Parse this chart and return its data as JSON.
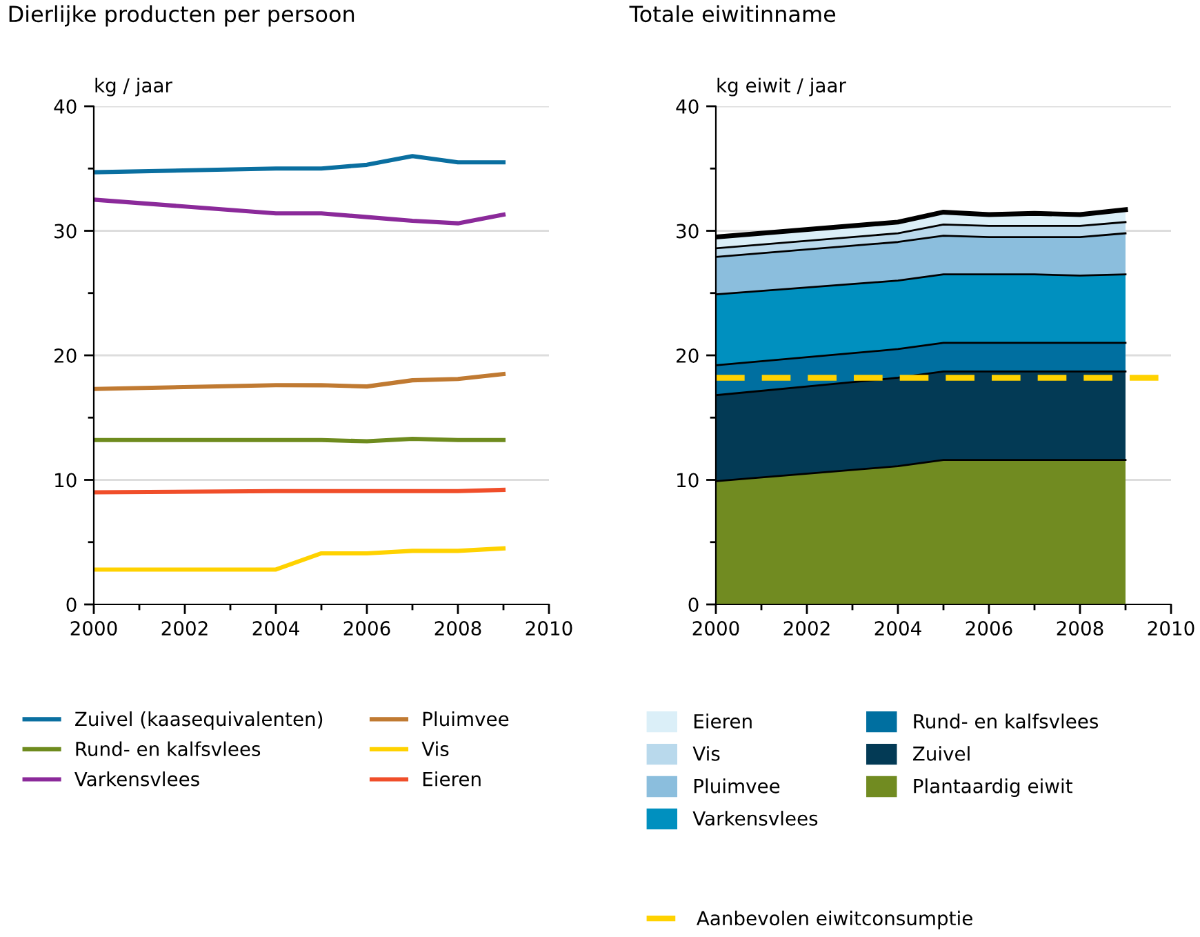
{
  "chart_data": [
    {
      "type": "line",
      "title": "Dierlijke producten per persoon",
      "ylabel": "kg / jaar",
      "x": [
        2000,
        2004,
        2005,
        2006,
        2007,
        2008,
        2009
      ],
      "series": [
        {
          "name": "Zuivel (kaasequivalenten)",
          "color": "#0a6fa0",
          "values": [
            34.7,
            35.0,
            35.0,
            35.3,
            36.0,
            35.5,
            35.5
          ]
        },
        {
          "name": "Rund- en kalfsvlees",
          "color": "#6e8b1e",
          "values": [
            13.2,
            13.2,
            13.2,
            13.1,
            13.3,
            13.2,
            13.2
          ]
        },
        {
          "name": "Varkensvlees",
          "color": "#8b2a9a",
          "values": [
            32.5,
            31.4,
            31.4,
            31.1,
            30.8,
            30.6,
            31.3
          ]
        },
        {
          "name": "Pluimvee",
          "color": "#c07a32",
          "values": [
            17.3,
            17.6,
            17.6,
            17.5,
            18.0,
            18.1,
            18.5
          ]
        },
        {
          "name": "Vis",
          "color": "#ffd200",
          "values": [
            2.8,
            2.8,
            4.1,
            4.1,
            4.3,
            4.3,
            4.5
          ]
        },
        {
          "name": "Eieren",
          "color": "#f04e2a",
          "values": [
            9.0,
            9.1,
            9.1,
            9.1,
            9.1,
            9.1,
            9.2
          ]
        }
      ],
      "xlim": [
        2000,
        2010
      ],
      "xticks": [
        2000,
        {
          "value": 2001,
          "label": null
        },
        2002,
        {
          "value": 2003,
          "label": null
        },
        2004,
        {
          "value": 2005,
          "label": null
        },
        2006,
        {
          "value": 2007,
          "label": null
        },
        2008,
        {
          "value": 2009,
          "label": null
        },
        2010
      ],
      "ylim": [
        0,
        40
      ],
      "yticks": [
        0,
        {
          "value": 5,
          "label": null
        },
        10,
        {
          "value": 15,
          "label": null
        },
        20,
        {
          "value": 25,
          "label": null
        },
        30,
        {
          "value": 35,
          "label": null
        },
        40
      ],
      "grid": "y",
      "legend": "bottom",
      "marker": "none",
      "line_style": "solid"
    },
    {
      "type": "area",
      "stacked": true,
      "title": "Totale eiwitinname",
      "ylabel": "kg eiwit / jaar",
      "x": [
        2000,
        2004,
        2005,
        2006,
        2007,
        2008,
        2009
      ],
      "series": [
        {
          "name": "Plantaardig eiwit",
          "color": "#718b21",
          "values": [
            9.9,
            11.1,
            11.6,
            11.6,
            11.6,
            11.6,
            11.6
          ]
        },
        {
          "name": "Zuivel",
          "color": "#033a55",
          "values": [
            6.9,
            7.1,
            7.1,
            7.1,
            7.1,
            7.1,
            7.1
          ]
        },
        {
          "name": "Rund- en kalfsvlees",
          "color": "#006fa0",
          "values": [
            2.4,
            2.3,
            2.3,
            2.3,
            2.3,
            2.3,
            2.3
          ]
        },
        {
          "name": "Varkensvlees",
          "color": "#0090bf",
          "values": [
            5.7,
            5.5,
            5.5,
            5.5,
            5.5,
            5.4,
            5.5
          ]
        },
        {
          "name": "Pluimvee",
          "color": "#8bbedd",
          "values": [
            3.0,
            3.1,
            3.1,
            3.0,
            3.0,
            3.1,
            3.3
          ]
        },
        {
          "name": "Vis",
          "color": "#b9d9ec",
          "values": [
            0.7,
            0.7,
            0.9,
            0.9,
            0.9,
            0.9,
            0.9
          ]
        },
        {
          "name": "Eieren",
          "color": "#dbeff8",
          "values": [
            0.9,
            0.9,
            1.0,
            0.9,
            1.0,
            0.9,
            1.0
          ]
        }
      ],
      "ref_lines": [
        {
          "axis": "y",
          "value": 18.2,
          "label": "Aanbevolen eiwitconsumptie",
          "color": "#ffd200",
          "line_style": "dashed"
        }
      ],
      "xlim": [
        2000,
        2010
      ],
      "xticks": [
        2000,
        {
          "value": 2001,
          "label": null
        },
        2002,
        {
          "value": 2003,
          "label": null
        },
        2004,
        {
          "value": 2005,
          "label": null
        },
        2006,
        {
          "value": 2007,
          "label": null
        },
        2008,
        {
          "value": 2009,
          "label": null
        },
        2010
      ],
      "ylim": [
        0,
        40
      ],
      "yticks": [
        0,
        {
          "value": 5,
          "label": null
        },
        10,
        {
          "value": 15,
          "label": null
        },
        20,
        {
          "value": 25,
          "label": null
        },
        30,
        {
          "value": 35,
          "label": null
        },
        40
      ],
      "grid": "y",
      "legend": "bottom"
    }
  ]
}
